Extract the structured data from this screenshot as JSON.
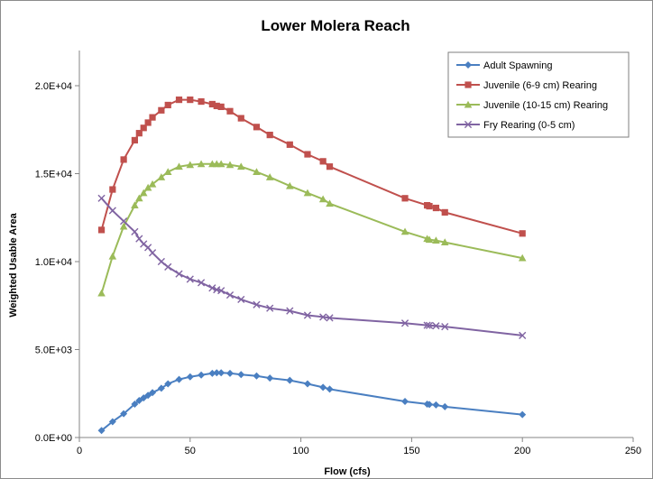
{
  "chart_data": {
    "type": "line",
    "title": "Lower Molera Reach",
    "xlabel": "Flow (cfs)",
    "ylabel": "Weighted Usable Area",
    "xlim": [
      0,
      250
    ],
    "ylim": [
      0,
      22000
    ],
    "x_ticks": [
      0,
      50,
      100,
      150,
      200,
      250
    ],
    "x_tick_labels": [
      "0",
      "50",
      "100",
      "150",
      "200",
      "250"
    ],
    "y_ticks": [
      0,
      5000,
      10000,
      15000,
      20000
    ],
    "y_tick_labels": [
      "0.0E+00",
      "5.0E+03",
      "1.0E+04",
      "1.5E+04",
      "2.0E+04"
    ],
    "grid": false,
    "legend_position": "top-right",
    "series": [
      {
        "name": "Adult Spawning",
        "color": "#4a7fc1",
        "marker": "diamond",
        "x": [
          10,
          15,
          20,
          25,
          27,
          29,
          31,
          33,
          37,
          40,
          45,
          50,
          55,
          60,
          62,
          64,
          68,
          73,
          80,
          86,
          95,
          103,
          110,
          113,
          147,
          157,
          158,
          161,
          165,
          200
        ],
        "y": [
          400,
          900,
          1350,
          1900,
          2100,
          2250,
          2400,
          2550,
          2800,
          3050,
          3300,
          3450,
          3550,
          3650,
          3680,
          3680,
          3650,
          3580,
          3500,
          3380,
          3250,
          3050,
          2850,
          2750,
          2050,
          1900,
          1880,
          1850,
          1750,
          1300
        ]
      },
      {
        "name": "Juvenile (6-9 cm) Rearing",
        "color": "#c0504d",
        "marker": "square",
        "x": [
          10,
          15,
          20,
          25,
          27,
          29,
          31,
          33,
          37,
          40,
          45,
          50,
          55,
          60,
          62,
          64,
          68,
          73,
          80,
          86,
          95,
          103,
          110,
          113,
          147,
          157,
          158,
          161,
          165,
          200
        ],
        "y": [
          11800,
          14100,
          15800,
          16900,
          17300,
          17600,
          17900,
          18200,
          18600,
          18900,
          19200,
          19200,
          19100,
          18950,
          18850,
          18800,
          18550,
          18150,
          17650,
          17200,
          16650,
          16100,
          15700,
          15400,
          13600,
          13200,
          13150,
          13050,
          12800,
          11600
        ]
      },
      {
        "name": "Juvenile (10-15 cm) Rearing",
        "color": "#9bbb59",
        "marker": "triangle",
        "x": [
          10,
          15,
          20,
          25,
          27,
          29,
          31,
          33,
          37,
          40,
          45,
          50,
          55,
          60,
          62,
          64,
          68,
          73,
          80,
          86,
          95,
          103,
          110,
          113,
          147,
          157,
          158,
          161,
          165,
          200
        ],
        "y": [
          8200,
          10300,
          12000,
          13200,
          13600,
          13900,
          14200,
          14400,
          14800,
          15100,
          15400,
          15500,
          15550,
          15550,
          15550,
          15550,
          15500,
          15400,
          15100,
          14800,
          14300,
          13900,
          13550,
          13300,
          11700,
          11300,
          11250,
          11200,
          11100,
          10200
        ]
      },
      {
        "name": "Fry Rearing (0-5 cm)",
        "color": "#8064a2",
        "marker": "x",
        "x": [
          10,
          15,
          20,
          25,
          27,
          29,
          31,
          33,
          37,
          40,
          45,
          50,
          55,
          60,
          62,
          64,
          68,
          73,
          80,
          86,
          95,
          103,
          110,
          113,
          147,
          157,
          158,
          161,
          165,
          200
        ],
        "y": [
          13600,
          12900,
          12300,
          11700,
          11300,
          11000,
          10800,
          10500,
          10000,
          9700,
          9300,
          9000,
          8800,
          8500,
          8400,
          8350,
          8100,
          7850,
          7550,
          7350,
          7200,
          6950,
          6850,
          6800,
          6500,
          6380,
          6370,
          6350,
          6300,
          5800
        ]
      }
    ]
  }
}
